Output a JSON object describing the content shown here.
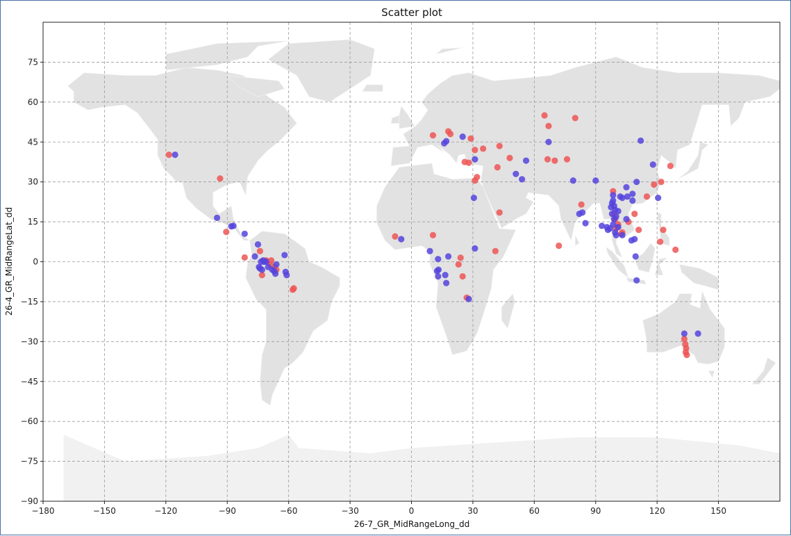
{
  "chart_data": {
    "type": "scatter",
    "title": "Scatter plot",
    "xlabel": "26-7_GR_MidRangeLong_dd",
    "ylabel": "26-4_GR_MidRangeLat_dd",
    "xlim": [
      -180,
      180
    ],
    "ylim": [
      -90,
      90
    ],
    "xticks": [
      -180,
      -150,
      -120,
      -90,
      -60,
      -30,
      0,
      30,
      60,
      90,
      120,
      150
    ],
    "yticks": [
      -90,
      -75,
      -60,
      -45,
      -30,
      -15,
      0,
      15,
      30,
      45,
      60,
      75
    ],
    "grid": true,
    "background": "world map (light grey)",
    "series": [
      {
        "color": "#ee5555",
        "points": [
          [
            -118.5,
            40.2
          ],
          [
            -93.5,
            31.3
          ],
          [
            -90.5,
            11.2
          ],
          [
            -81.5,
            1.6
          ],
          [
            -74,
            4
          ],
          [
            -73,
            -5
          ],
          [
            -71,
            0.5
          ],
          [
            -69,
            -1
          ],
          [
            -68.5,
            0.5
          ],
          [
            -67,
            -2
          ],
          [
            -66,
            -3
          ],
          [
            -57.5,
            -10
          ],
          [
            -58,
            -10.5
          ],
          [
            -8,
            9.5
          ],
          [
            10.5,
            10
          ],
          [
            10.5,
            47.5
          ],
          [
            18,
            49
          ],
          [
            19,
            48
          ],
          [
            23,
            -1
          ],
          [
            24,
            1.5
          ],
          [
            25,
            -5.5
          ],
          [
            26,
            37.5
          ],
          [
            27,
            -13.5
          ],
          [
            28,
            37.2
          ],
          [
            29,
            46.3
          ],
          [
            31,
            42
          ],
          [
            31,
            30.5
          ],
          [
            32,
            31.8
          ],
          [
            35,
            42.5
          ],
          [
            41,
            4
          ],
          [
            42,
            35.5
          ],
          [
            43,
            43.5
          ],
          [
            43,
            18.5
          ],
          [
            48,
            39
          ],
          [
            65,
            55
          ],
          [
            66.5,
            38.5
          ],
          [
            67,
            51
          ],
          [
            70,
            38
          ],
          [
            72,
            6
          ],
          [
            76,
            38.5
          ],
          [
            80,
            54
          ],
          [
            83,
            21.5
          ],
          [
            98.5,
            26.5
          ],
          [
            99,
            18
          ],
          [
            99.5,
            16
          ],
          [
            100,
            12.5
          ],
          [
            101,
            14
          ],
          [
            102.5,
            10.5
          ],
          [
            103,
            11
          ],
          [
            106,
            15
          ],
          [
            109,
            18
          ],
          [
            111,
            12
          ],
          [
            115,
            24.5
          ],
          [
            118.5,
            29
          ],
          [
            121.5,
            7.5
          ],
          [
            122,
            30
          ],
          [
            123,
            12
          ],
          [
            126.5,
            36
          ],
          [
            129,
            4.5
          ],
          [
            133.3,
            -29
          ],
          [
            133.8,
            -31
          ],
          [
            134.2,
            -32.5
          ],
          [
            134,
            -34
          ],
          [
            134.5,
            -35
          ]
        ]
      },
      {
        "color": "#5544dd",
        "points": [
          [
            -115.5,
            40.2
          ],
          [
            -95,
            16.5
          ],
          [
            -88,
            13.3
          ],
          [
            -87,
            13.5
          ],
          [
            -81.5,
            10.5
          ],
          [
            -76.5,
            2
          ],
          [
            -75,
            6.5
          ],
          [
            -74.5,
            -2
          ],
          [
            -74,
            -2.5
          ],
          [
            -73.5,
            0
          ],
          [
            -73,
            -3
          ],
          [
            -72.5,
            0.5
          ],
          [
            -72,
            0
          ],
          [
            -71,
            0
          ],
          [
            -70,
            -2
          ],
          [
            -68,
            -3
          ],
          [
            -67,
            -3.5
          ],
          [
            -66.5,
            -4.5
          ],
          [
            -66,
            -1
          ],
          [
            -62,
            2.5
          ],
          [
            -61.5,
            -3.8
          ],
          [
            -61,
            -5
          ],
          [
            -5,
            8.5
          ],
          [
            9,
            4
          ],
          [
            12.5,
            -3.5
          ],
          [
            13,
            -5.5
          ],
          [
            13.2,
            -3
          ],
          [
            13,
            1
          ],
          [
            16.5,
            -5
          ],
          [
            17,
            -8
          ],
          [
            18,
            2
          ],
          [
            16,
            44.5
          ],
          [
            17,
            45.3
          ],
          [
            25,
            47
          ],
          [
            28,
            -14
          ],
          [
            30.5,
            24
          ],
          [
            31,
            5
          ],
          [
            31,
            38.5
          ],
          [
            51,
            33
          ],
          [
            54,
            31
          ],
          [
            56,
            38
          ],
          [
            67,
            45
          ],
          [
            79,
            30.5
          ],
          [
            82,
            18
          ],
          [
            83.5,
            18.5
          ],
          [
            85,
            14.5
          ],
          [
            90,
            30.5
          ],
          [
            93,
            13.5
          ],
          [
            95.5,
            13
          ],
          [
            96,
            12
          ],
          [
            97,
            12.5
          ],
          [
            97.5,
            20.5
          ],
          [
            98,
            22
          ],
          [
            98,
            18
          ],
          [
            98.5,
            23
          ],
          [
            98.5,
            25
          ],
          [
            98.5,
            14
          ],
          [
            99,
            21
          ],
          [
            99,
            16
          ],
          [
            99.5,
            11
          ],
          [
            100,
            10
          ],
          [
            99.5,
            19.5
          ],
          [
            100,
            17
          ],
          [
            101,
            13
          ],
          [
            101,
            19
          ],
          [
            102,
            24.5
          ],
          [
            103,
            10
          ],
          [
            103,
            24
          ],
          [
            105,
            16
          ],
          [
            105,
            28
          ],
          [
            105.5,
            24.5
          ],
          [
            107.5,
            8
          ],
          [
            108,
            25.5
          ],
          [
            108,
            23
          ],
          [
            109,
            8.5
          ],
          [
            109.5,
            2
          ],
          [
            110,
            30
          ],
          [
            110,
            -7
          ],
          [
            112,
            45.5
          ],
          [
            118,
            36.5
          ],
          [
            120.5,
            24
          ],
          [
            133.3,
            -27
          ],
          [
            140,
            -27
          ]
        ]
      }
    ]
  }
}
